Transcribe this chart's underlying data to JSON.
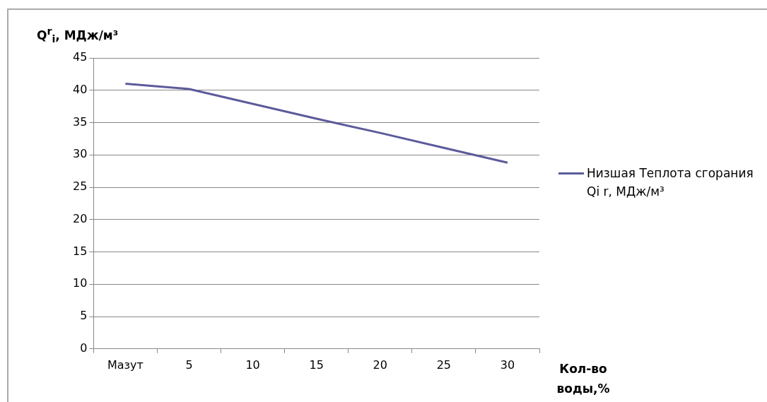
{
  "chart_data": {
    "type": "line",
    "ylabel": "Q$^{r}$$_{i}$, МДж/м³",
    "xlabel": "Кол-во воды,%",
    "categories": [
      "Мазут",
      "5",
      "10",
      "15",
      "20",
      "25",
      "30"
    ],
    "series": [
      {
        "name": "Низшая Теплота сгорания Qi r, МДж/м³",
        "color": "#5b5b9b",
        "values": [
          41,
          40.2,
          37.9,
          35.6,
          33.4,
          31.1,
          28.8
        ]
      }
    ],
    "ylim": [
      0,
      45
    ],
    "yticks": [
      0,
      5,
      10,
      15,
      20,
      25,
      30,
      35,
      40,
      45
    ],
    "grid": "y",
    "legend": "right",
    "marker": "none",
    "line_style": "solid"
  }
}
